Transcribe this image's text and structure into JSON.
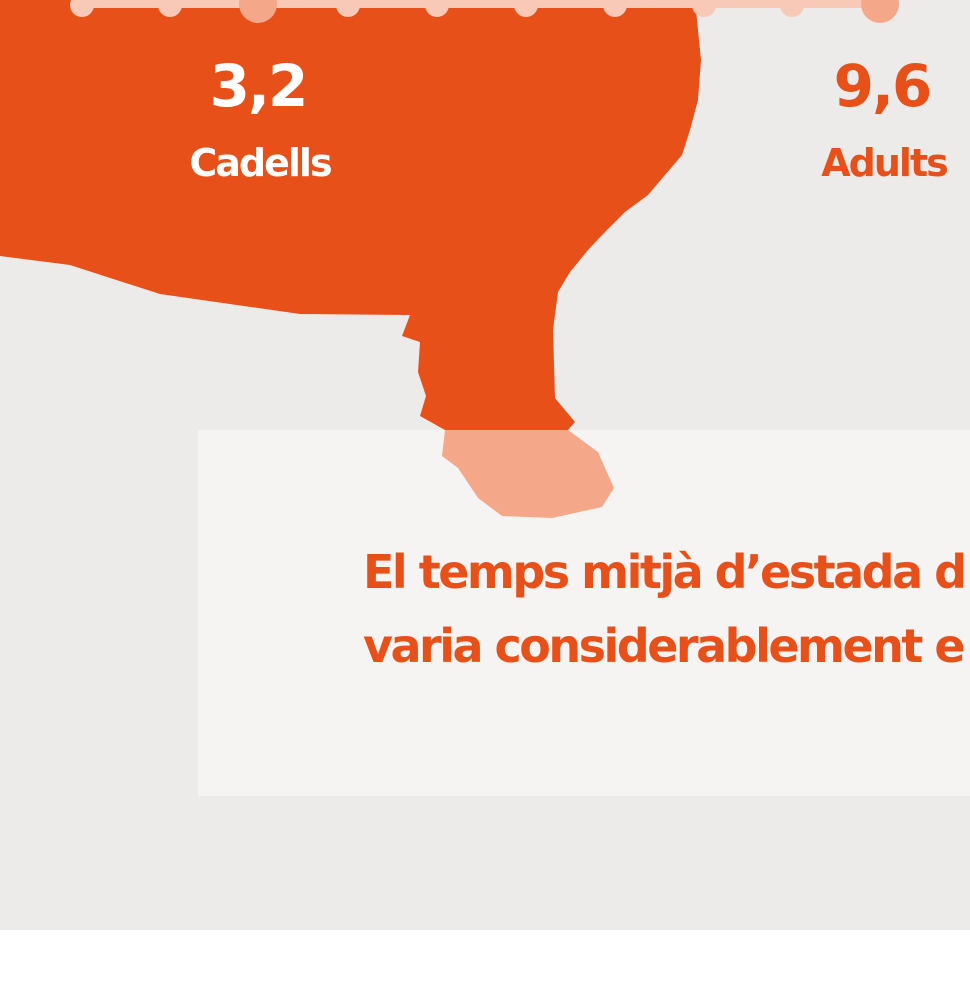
{
  "scale": {
    "left": {
      "value": "3,2",
      "label": "Cadells"
    },
    "right": {
      "value": "9,6",
      "label": "Adults"
    }
  },
  "note": {
    "lines": [
      "El temps mitjà d’estada d",
      "varia considerablement e"
    ]
  }
}
